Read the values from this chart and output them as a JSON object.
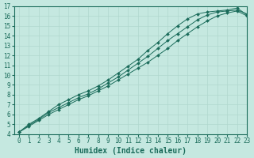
{
  "xlabel": "Humidex (Indice chaleur)",
  "ylabel": "",
  "bg_color": "#c5e8e0",
  "line_color": "#1a6b5a",
  "grid_color": "#b0d8ce",
  "xlim": [
    -0.5,
    23
  ],
  "ylim": [
    4,
    17
  ],
  "xticks": [
    0,
    1,
    2,
    3,
    4,
    5,
    6,
    7,
    8,
    9,
    10,
    11,
    12,
    13,
    14,
    15,
    16,
    17,
    18,
    19,
    20,
    21,
    22,
    23
  ],
  "yticks": [
    4,
    5,
    6,
    7,
    8,
    9,
    10,
    11,
    12,
    13,
    14,
    15,
    16,
    17
  ],
  "series1_x": [
    0,
    1,
    2,
    3,
    4,
    5,
    6,
    7,
    8,
    9,
    10,
    11,
    12,
    13,
    14,
    15,
    16,
    17,
    18,
    19,
    20,
    21,
    22,
    23
  ],
  "series1_y": [
    4.2,
    4.8,
    5.4,
    6.0,
    6.5,
    7.0,
    7.5,
    7.9,
    8.4,
    8.9,
    9.5,
    10.1,
    10.7,
    11.3,
    12.0,
    12.7,
    13.5,
    14.2,
    14.9,
    15.5,
    16.0,
    16.3,
    16.5,
    16.0
  ],
  "series2_x": [
    0,
    1,
    2,
    3,
    4,
    5,
    6,
    7,
    8,
    9,
    10,
    11,
    12,
    13,
    14,
    15,
    16,
    17,
    18,
    19,
    20,
    21,
    22,
    23
  ],
  "series2_y": [
    4.2,
    4.9,
    5.5,
    6.2,
    6.7,
    7.2,
    7.7,
    8.1,
    8.6,
    9.2,
    9.8,
    10.5,
    11.2,
    11.9,
    12.7,
    13.5,
    14.2,
    14.9,
    15.6,
    16.1,
    16.4,
    16.5,
    16.6,
    16.2
  ],
  "series3_x": [
    0,
    1,
    2,
    3,
    4,
    5,
    6,
    7,
    8,
    9,
    10,
    11,
    12,
    13,
    14,
    15,
    16,
    17,
    18,
    19,
    20,
    21,
    22,
    23
  ],
  "series3_y": [
    4.2,
    5.0,
    5.6,
    6.3,
    7.0,
    7.5,
    8.0,
    8.4,
    8.9,
    9.5,
    10.2,
    10.9,
    11.6,
    12.5,
    13.3,
    14.2,
    15.0,
    15.7,
    16.2,
    16.4,
    16.5,
    16.6,
    16.8,
    16.1
  ],
  "xlabel_fontsize": 7,
  "tick_fontsize": 5.5
}
